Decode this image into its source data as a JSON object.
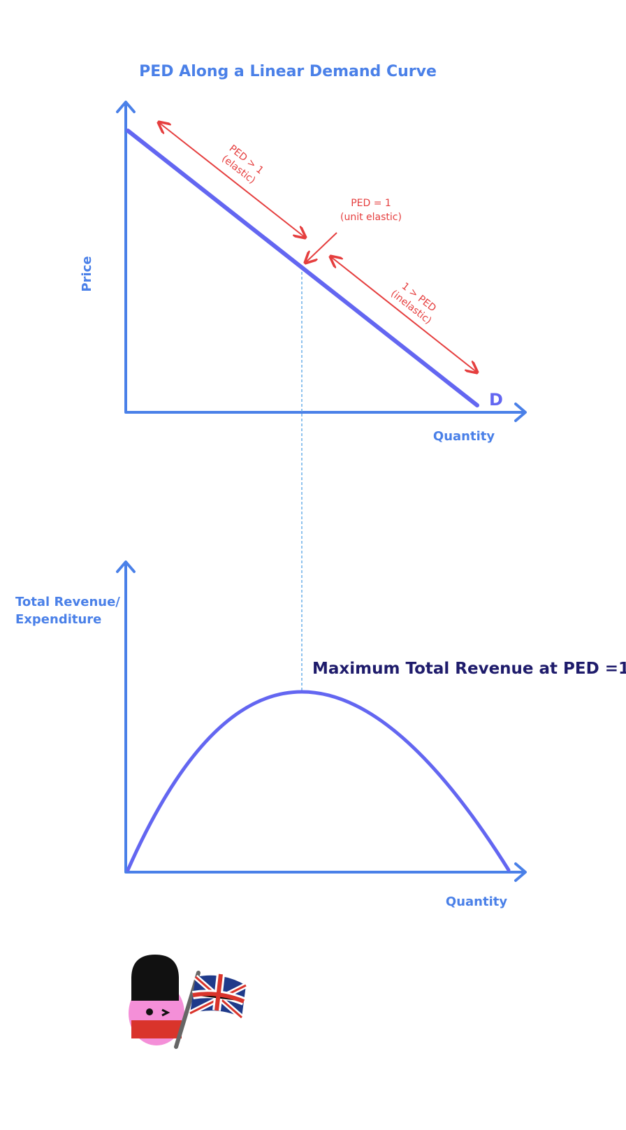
{
  "title": "PED Along a Linear Demand Curve",
  "top_chart": {
    "y_label": "Price",
    "x_label": "Quantity",
    "curve_label": "D",
    "elastic": {
      "line1": "PED > 1",
      "line2": "(elastic)"
    },
    "unit": {
      "line1": "PED = 1",
      "line2": "(unit elastic)"
    },
    "inelastic": {
      "line1": "1 > PED",
      "line2": "(inelastic)"
    }
  },
  "bottom_chart": {
    "y_label": [
      "Total Revenue/",
      "Expenditure"
    ],
    "x_label": "Quantity",
    "annotation": "Maximum Total Revenue at PED =1"
  }
}
